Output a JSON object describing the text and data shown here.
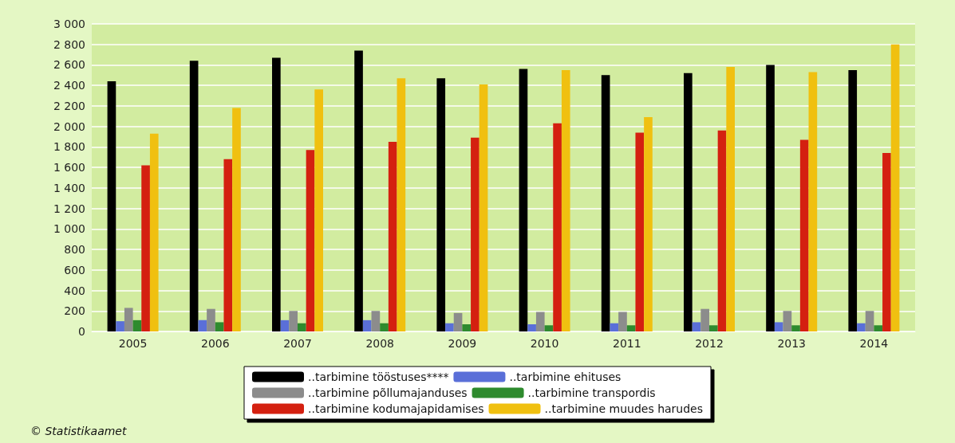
{
  "chart_data": {
    "type": "bar",
    "categories": [
      "2005",
      "2006",
      "2007",
      "2008",
      "2009",
      "2010",
      "2011",
      "2012",
      "2013",
      "2014"
    ],
    "series": [
      {
        "name": "..tarbimine tööstuses****",
        "color": "#000000",
        "values": [
          2440,
          2640,
          2670,
          2740,
          2470,
          2560,
          2500,
          2520,
          2600,
          2550
        ]
      },
      {
        "name": "..tarbimine ehituses",
        "color": "#5a6fd8",
        "values": [
          100,
          110,
          110,
          110,
          80,
          70,
          80,
          90,
          90,
          80
        ]
      },
      {
        "name": "..tarbimine põllumajanduses",
        "color": "#8c8c8c",
        "values": [
          230,
          220,
          200,
          200,
          180,
          190,
          190,
          220,
          200,
          200
        ]
      },
      {
        "name": "..tarbimine transpordis",
        "color": "#2e8b2e",
        "values": [
          110,
          90,
          80,
          80,
          70,
          60,
          60,
          60,
          60,
          60
        ]
      },
      {
        "name": "..tarbimine kodumajapidamises",
        "color": "#d42010",
        "values": [
          1620,
          1680,
          1770,
          1850,
          1890,
          2030,
          1940,
          1960,
          1870,
          1740
        ]
      },
      {
        "name": "..tarbimine muudes harudes",
        "color": "#f0c010",
        "values": [
          1930,
          2180,
          2360,
          2470,
          2410,
          2550,
          2090,
          2580,
          2530,
          2800
        ]
      }
    ],
    "ylim": [
      0,
      3000
    ],
    "yticks": [
      0,
      200,
      400,
      600,
      800,
      {
        "value": 1000,
        "label": "1 000"
      },
      {
        "value": 1200,
        "label": "1 200"
      },
      {
        "value": 1400,
        "label": "1 400"
      },
      {
        "value": 1600,
        "label": "1 600"
      },
      {
        "value": 1800,
        "label": "1 800"
      },
      {
        "value": 2000,
        "label": "2 000"
      },
      {
        "value": 2200,
        "label": "2 200"
      },
      {
        "value": 2400,
        "label": "2 400"
      },
      {
        "value": 2600,
        "label": "2 600"
      },
      {
        "value": 2800,
        "label": "2 800"
      },
      {
        "value": 3000,
        "label": "3 000"
      }
    ],
    "grid": "y",
    "legend": "bottom",
    "annotations": [
      "© Statistikaamet"
    ]
  }
}
